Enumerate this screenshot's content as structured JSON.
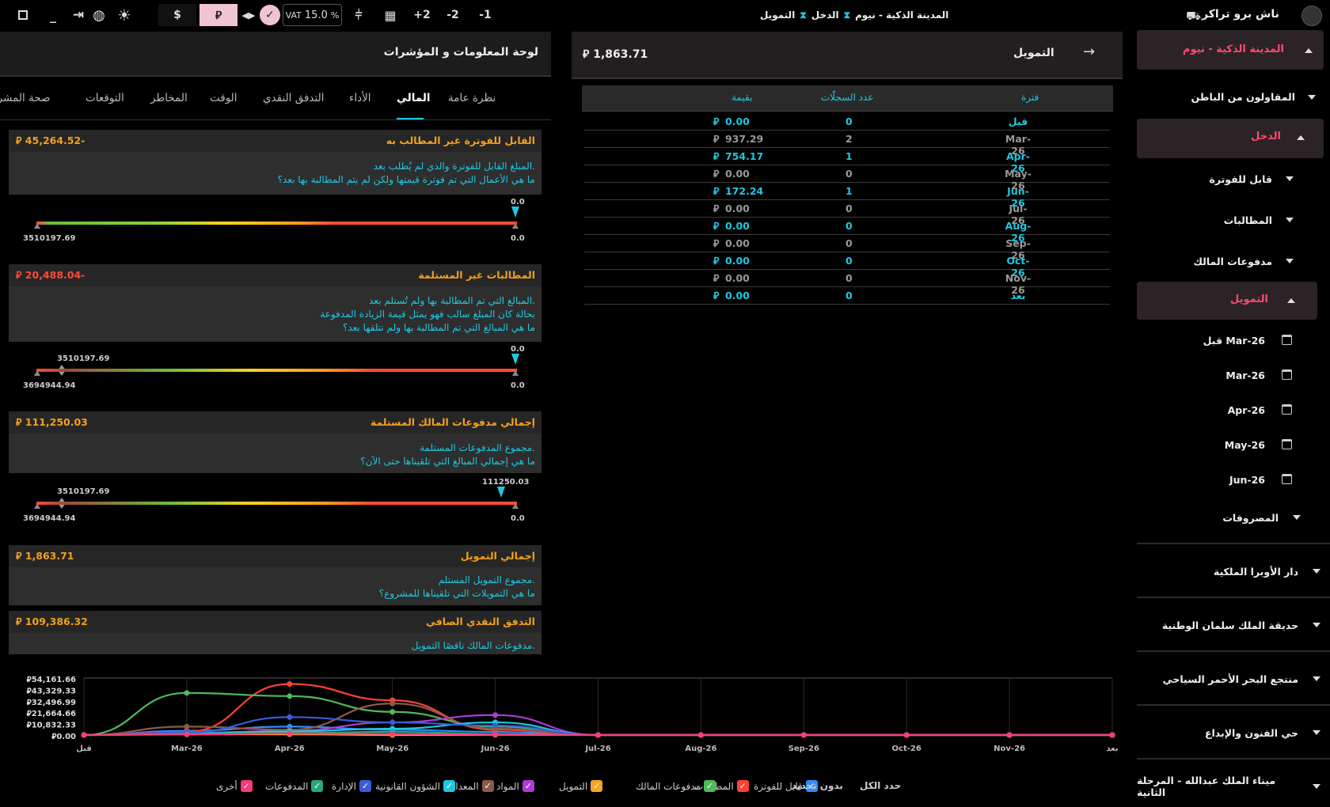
{
  "topbar": {
    "brand": "ناش برو تراكر",
    "breadcrumb": [
      "المدينة الذكية - نيوم",
      "الدخل",
      "التمويل"
    ],
    "steps": [
      "-1",
      "-2",
      "+2"
    ],
    "vat_label": "VAT",
    "vat_value": "15.0",
    "vat_unit": "%",
    "currency_sar": "⃁",
    "currency_usd": "$"
  },
  "sidebar": {
    "project": "المدينة الذكية - نيوم",
    "subcontractors": "المقاولون من الباطن",
    "income": "الدخل",
    "billable": "قابل للفوترة",
    "claims": "المطالبات",
    "owner_payments": "مدفوعات المالك",
    "financing": "التمويل",
    "periods": [
      "قبل Mar-26",
      "Mar-26",
      "Apr-26",
      "May-26",
      "Jun-26"
    ],
    "expenses": "المصروفات",
    "other_projects": [
      "دار الأوبرا الملكية",
      "حديقة الملك سلمان الوطنية",
      "منتجع البحر الأحمر السياحي",
      "حي الفنون والإبداع",
      "ميناء الملك عبدالله - المرحلة الثانية"
    ]
  },
  "financing": {
    "title": "التمويل",
    "total": "1,863.71",
    "headers": {
      "period": "فترة",
      "count": "عدد السجلّات",
      "value": "بقيمة"
    },
    "rows": [
      {
        "period": "قبل",
        "count": "0",
        "value": "0.00",
        "hl": true
      },
      {
        "period": "Mar-26",
        "count": "2",
        "value": "937.29",
        "hl": false
      },
      {
        "period": "Apr-26",
        "count": "1",
        "value": "754.17",
        "hl": true
      },
      {
        "period": "May-26",
        "count": "0",
        "value": "0.00",
        "hl": false
      },
      {
        "period": "Jun-26",
        "count": "1",
        "value": "172.24",
        "hl": true
      },
      {
        "period": "Jul-26",
        "count": "0",
        "value": "0.00",
        "hl": false
      },
      {
        "period": "Aug-26",
        "count": "0",
        "value": "0.00",
        "hl": true
      },
      {
        "period": "Sep-26",
        "count": "0",
        "value": "0.00",
        "hl": false
      },
      {
        "period": "Oct-26",
        "count": "0",
        "value": "0.00",
        "hl": true
      },
      {
        "period": "Nov-26",
        "count": "0",
        "value": "0.00",
        "hl": false
      },
      {
        "period": "بعد",
        "count": "0",
        "value": "0.00",
        "hl": true
      }
    ]
  },
  "dashboard": {
    "title": "لوحة المعلومات و المؤشرات",
    "tabs": [
      "نظرة عامة",
      "المالي",
      "الأداء",
      "التدفق النقدي",
      "الوقت",
      "المخاطر",
      "التوقعات",
      "صحة المشروع"
    ],
    "active_tab": "المالي",
    "cards": [
      {
        "title": "القابل للفوترة غير المطالب به",
        "value": "45,264.52-",
        "lines": [
          "المبلغ القابل للفوترة والذي لم يُطلب بعد.",
          "ما هي الأعمال التي تم فوترة قيمتها ولكن لم يتم المطالبة بها بعد؟"
        ],
        "gauge": {
          "top": "0.0",
          "right": "0.0",
          "left": "3510197.69"
        }
      },
      {
        "title": "المطالبات غير المستلمة",
        "value": "20,488.04-",
        "lines": [
          "المبالغ التي تم المطالبة بها ولم تُستلم بعد.",
          "بحالة كان المبلغ سالب فهو يمثل قيمة الزيادة المدفوعة",
          "ما هي المبالغ التي تم المطالبة بها ولم نتلقها بعد؟"
        ],
        "gauge": {
          "top": "0.0",
          "right": "0.0",
          "left": "3694944.94",
          "mid": "3510197.69"
        }
      },
      {
        "title": "إجمالي مدفوعات المالك المستلمة",
        "value": "111,250.03",
        "lines": [
          "مجموع المدفوعات المستلمة.",
          "ما هي إجمالي المبالغ التي تلقيناها حتى الآن؟"
        ],
        "gauge": {
          "top": "111250.03",
          "right": "0.0",
          "left": "3694944.94",
          "mid": "3510197.69"
        }
      },
      {
        "title": "إجمالي التمويل",
        "value": "1,863.71",
        "lines": [
          "مجموع التمويل المستلم.",
          "ما هي التمويلات التي تلقيناها للمشروع؟"
        ]
      },
      {
        "title": "التدفق النقدي الصافي",
        "value": "109,386.32",
        "lines": [
          "مدفوعات المالك ناقصًا التمويل."
        ]
      }
    ]
  },
  "chart_data": {
    "type": "line",
    "categories": [
      "قبل",
      "Mar-26",
      "Apr-26",
      "May-26",
      "Jun-26",
      "Jul-26",
      "Aug-26",
      "Sep-26",
      "Oct-26",
      "Nov-26",
      "بعد"
    ],
    "y_ticks": [
      "54,161.66",
      "43,329.33",
      "32,496.99",
      "21,664.66",
      "10,832.33",
      "0.00"
    ],
    "ylim": [
      0,
      54161.66
    ],
    "series": [
      {
        "name": "قابل للفوترة",
        "color": "#2f8cff",
        "values": [
          0,
          4000,
          8000,
          5000,
          3000,
          0,
          0,
          0,
          0,
          0,
          0
        ]
      },
      {
        "name": "المطالبات",
        "color": "#ff4136",
        "values": [
          0,
          3000,
          48500,
          33000,
          5000,
          0,
          0,
          0,
          0,
          0,
          0
        ]
      },
      {
        "name": "مدفوعات المالك",
        "color": "#4fbb5a",
        "values": [
          0,
          40000,
          37000,
          22000,
          8000,
          0,
          0,
          0,
          0,
          0,
          0
        ]
      },
      {
        "name": "التمويل",
        "color": "#f5a623",
        "values": [
          0,
          937.29,
          754.17,
          0,
          172.24,
          0,
          0,
          0,
          0,
          0,
          0
        ]
      },
      {
        "name": "المواد",
        "color": "#b03ad6",
        "values": [
          0,
          2000,
          4000,
          12000,
          19000,
          0,
          0,
          0,
          0,
          0,
          0
        ]
      },
      {
        "name": "المعدات",
        "color": "#8b5a4b",
        "values": [
          0,
          8000,
          5000,
          30000,
          6000,
          0,
          0,
          0,
          0,
          0,
          0
        ]
      },
      {
        "name": "الشؤون القانونية",
        "color": "#1ec8e0",
        "values": [
          0,
          1500,
          3500,
          6000,
          12000,
          0,
          0,
          0,
          0,
          0,
          0
        ]
      },
      {
        "name": "الإدارة",
        "color": "#3b5bdb",
        "values": [
          0,
          2500,
          17000,
          12000,
          9000,
          0,
          0,
          0,
          0,
          0,
          0
        ]
      },
      {
        "name": "المدفوعات",
        "color": "#28a87a",
        "values": [
          0,
          1000,
          2000,
          3000,
          1000,
          0,
          0,
          0,
          0,
          0,
          0
        ]
      },
      {
        "name": "أخرى",
        "color": "#ff3a7c",
        "values": [
          0,
          500,
          1500,
          1000,
          500,
          0,
          0,
          0,
          0,
          0,
          0
        ]
      }
    ],
    "legend": [
      "قابل للفوترة",
      "المطالبات",
      "مدفوعات المالك",
      "التمويل",
      "المواد",
      "المعدات",
      "الشؤون القانونية",
      "الإدارة",
      "المدفوعات",
      "أخرى"
    ],
    "select_all": "حدد الكل",
    "select_none": "بدون تحديد"
  }
}
